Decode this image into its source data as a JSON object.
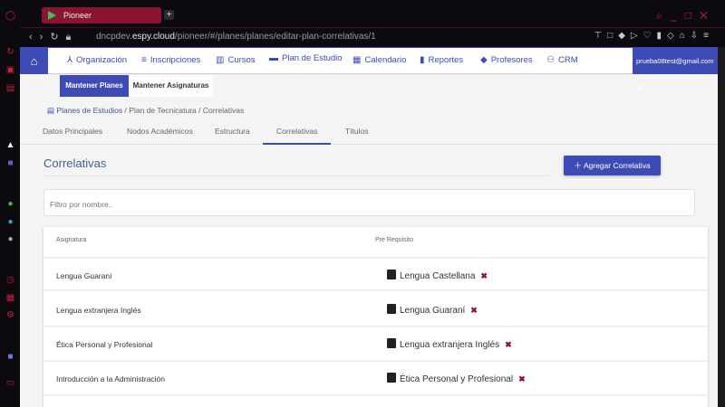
{
  "browser": {
    "tab_title": "Pioneer",
    "url_prefix": "dncpdev.",
    "url_domain": "espy.cloud",
    "url_path": "/pioneer/#/planes/planes/editar-plan-correlativas/1"
  },
  "header": {
    "menu": [
      {
        "label": "Organización",
        "icon": "organization-icon"
      },
      {
        "label": "Inscripciones",
        "icon": "checklist-icon"
      },
      {
        "label": "Cursos",
        "icon": "book-icon"
      },
      {
        "label": "Plan de Estudio",
        "icon": "plan-icon"
      },
      {
        "label": "Calendario",
        "icon": "calendar-icon"
      },
      {
        "label": "Reportes",
        "icon": "bar-chart-icon"
      },
      {
        "label": "Profesores",
        "icon": "cards-icon"
      },
      {
        "label": "CRM",
        "icon": "people-icon"
      }
    ],
    "user_email": "prueba08test@gmail.com"
  },
  "subnav": {
    "items": [
      "Mantener Planes",
      "Mantener Asignaturas"
    ]
  },
  "breadcrumb": [
    "Planes de Estudios",
    "Plan de Tecnicatura",
    "Correlativas"
  ],
  "tabs": [
    "Datos Principales",
    "Nodos Académicos",
    "Estructura",
    "Correlativas",
    "Títulos"
  ],
  "main": {
    "title": "Correlativas",
    "add_button": "Agregar Correlativa",
    "filter_placeholder": "Filtro por nombre..",
    "columns": [
      "Asignatura",
      "Pre Requisito"
    ],
    "rows": [
      {
        "asignatura": "Lengua Guaraní",
        "prerequisito": "Lengua Castellana"
      },
      {
        "asignatura": "Lengua extranjera Inglés",
        "prerequisito": "Lengua Guaraní"
      },
      {
        "asignatura": "Ética Personal y Profesional",
        "prerequisito": "Lengua extranjera Inglés"
      },
      {
        "asignatura": "Introducción a la Administración",
        "prerequisito": "Ética Personal y Profesional"
      }
    ]
  },
  "colors": {
    "primary": "#3f4bb5",
    "browser_accent": "#c4203f",
    "remove": "#8b1530"
  }
}
